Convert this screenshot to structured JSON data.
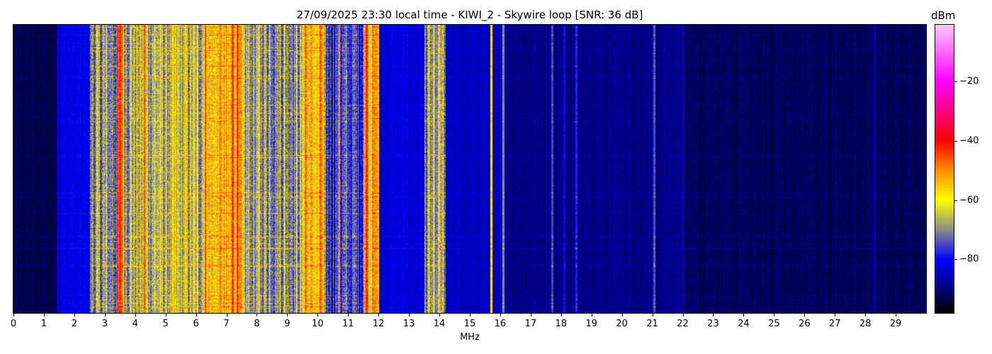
{
  "chart_data": {
    "type": "heatmap",
    "title": "27/09/2025 23:30 local time - KIWI_2 - Skywire loop [SNR: 36 dB]",
    "xlabel": "MHz",
    "ylabel": "",
    "xlim": [
      0,
      30
    ],
    "x_ticks": [
      "0",
      "1",
      "2",
      "3",
      "4",
      "5",
      "6",
      "7",
      "8",
      "9",
      "10",
      "11",
      "12",
      "13",
      "14",
      "15",
      "16",
      "17",
      "18",
      "19",
      "20",
      "21",
      "22",
      "23",
      "24",
      "25",
      "26",
      "27",
      "28",
      "29"
    ],
    "colorbar": {
      "label": "dBm",
      "range": [
        -98,
        -1
      ],
      "ticks": [
        "−20",
        "−40",
        "−60",
        "−80"
      ],
      "tick_values": [
        -20,
        -40,
        -60,
        -80
      ],
      "colormap_stops": [
        {
          "value": -98,
          "color": "#000000"
        },
        {
          "value": -90,
          "color": "#00007a"
        },
        {
          "value": -80,
          "color": "#0000ff"
        },
        {
          "value": -70,
          "color": "#8a8a8a"
        },
        {
          "value": -60,
          "color": "#ffff00"
        },
        {
          "value": -50,
          "color": "#ff9000"
        },
        {
          "value": -40,
          "color": "#ff0000"
        },
        {
          "value": -30,
          "color": "#ff0080"
        },
        {
          "value": -20,
          "color": "#ff00ff"
        },
        {
          "value": -1,
          "color": "#ffc8ff"
        }
      ]
    },
    "bands_mhz_dbm": [
      {
        "from": 0,
        "to": 1.4,
        "level": -93
      },
      {
        "from": 1.4,
        "to": 2.5,
        "level": -82
      },
      {
        "from": 2.5,
        "to": 3.4,
        "level": -70
      },
      {
        "from": 3.4,
        "to": 3.6,
        "level": -48
      },
      {
        "from": 3.6,
        "to": 6.2,
        "level": -66
      },
      {
        "from": 6.2,
        "to": 7.5,
        "level": -56
      },
      {
        "from": 7.5,
        "to": 9.5,
        "level": -68
      },
      {
        "from": 9.5,
        "to": 10.2,
        "level": -57
      },
      {
        "from": 10.2,
        "to": 11.5,
        "level": -76
      },
      {
        "from": 11.5,
        "to": 12.0,
        "level": -55
      },
      {
        "from": 12.0,
        "to": 13.5,
        "level": -83
      },
      {
        "from": 13.5,
        "to": 14.2,
        "level": -70
      },
      {
        "from": 14.2,
        "to": 16.1,
        "level": -85
      },
      {
        "from": 16.1,
        "to": 22.0,
        "level": -89
      },
      {
        "from": 22.0,
        "to": 30.0,
        "level": -92
      }
    ],
    "lines_mhz_dbm": [
      {
        "f": 3.5,
        "level": -42
      },
      {
        "f": 4.3,
        "level": -45
      },
      {
        "f": 6.3,
        "level": -44
      },
      {
        "f": 7.2,
        "level": -42
      },
      {
        "f": 7.35,
        "level": -40
      },
      {
        "f": 9.6,
        "level": -48
      },
      {
        "f": 10.1,
        "level": -45
      },
      {
        "f": 10.7,
        "level": -50
      },
      {
        "f": 11.6,
        "level": -42
      },
      {
        "f": 11.8,
        "level": -50
      },
      {
        "f": 14.0,
        "level": -55
      },
      {
        "f": 15.7,
        "level": -58
      },
      {
        "f": 16.1,
        "level": -70
      },
      {
        "f": 17.7,
        "level": -75
      },
      {
        "f": 18.1,
        "level": -80
      },
      {
        "f": 18.5,
        "level": -78
      },
      {
        "f": 21.05,
        "level": -74
      },
      {
        "f": 22.0,
        "level": -82
      },
      {
        "f": 28.3,
        "level": -84
      }
    ]
  }
}
